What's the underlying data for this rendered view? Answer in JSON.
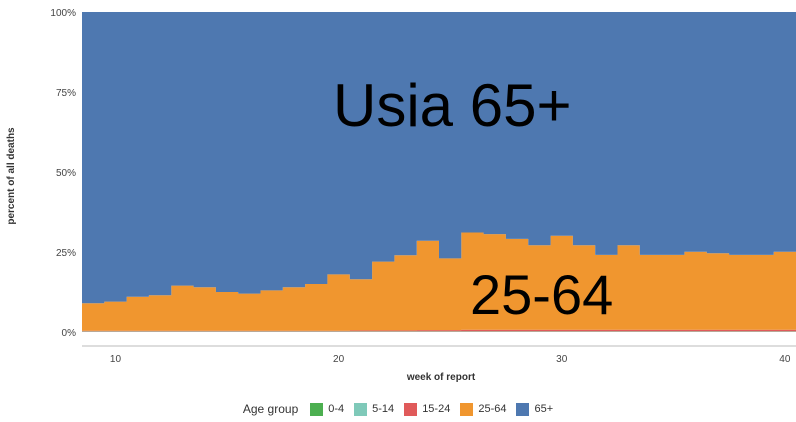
{
  "chart_data": {
    "type": "area",
    "stacked_percent": true,
    "xlabel": "week of report",
    "ylabel": "percent of all deaths",
    "xlim": [
      8.5,
      40.5
    ],
    "ylim": [
      0,
      100
    ],
    "x_ticks": [
      10,
      20,
      30,
      40
    ],
    "y_ticks": [
      0,
      25,
      50,
      75,
      100
    ],
    "y_tick_labels": [
      "0%",
      "25%",
      "50%",
      "75%",
      "100%"
    ],
    "step": true,
    "weeks": [
      9,
      10,
      11,
      12,
      13,
      14,
      15,
      16,
      17,
      18,
      19,
      20,
      21,
      22,
      23,
      24,
      25,
      26,
      27,
      28,
      29,
      30,
      31,
      32,
      33,
      34,
      35,
      36,
      37,
      38,
      39,
      40
    ],
    "series": [
      {
        "name": "0-4",
        "color": "#4caf50",
        "values": [
          0.1,
          0.1,
          0.1,
          0.1,
          0.1,
          0.1,
          0.1,
          0.1,
          0.1,
          0.1,
          0.1,
          0.1,
          0.1,
          0.1,
          0.1,
          0.1,
          0.1,
          0.1,
          0.1,
          0.1,
          0.1,
          0.1,
          0.1,
          0.1,
          0.1,
          0.1,
          0.1,
          0.1,
          0.1,
          0.1,
          0.1,
          0.1
        ]
      },
      {
        "name": "5-14",
        "color": "#7fc9b9",
        "values": [
          0.1,
          0.1,
          0.1,
          0.1,
          0.1,
          0.1,
          0.1,
          0.1,
          0.1,
          0.1,
          0.1,
          0.1,
          0.1,
          0.1,
          0.1,
          0.1,
          0.1,
          0.1,
          0.1,
          0.1,
          0.1,
          0.1,
          0.1,
          0.1,
          0.1,
          0.1,
          0.1,
          0.1,
          0.1,
          0.1,
          0.1,
          0.1
        ]
      },
      {
        "name": "15-24",
        "color": "#e05a5a",
        "values": [
          0.2,
          0.2,
          0.2,
          0.2,
          0.2,
          0.2,
          0.2,
          0.2,
          0.2,
          0.2,
          0.2,
          0.2,
          0.3,
          0.3,
          0.3,
          0.4,
          0.4,
          0.5,
          0.5,
          0.5,
          0.5,
          0.5,
          0.5,
          0.5,
          0.5,
          0.5,
          0.5,
          0.5,
          0.5,
          0.5,
          0.5,
          0.5
        ]
      },
      {
        "name": "25-64",
        "color": "#f0962f",
        "values": [
          8.6,
          9.1,
          10.6,
          11.1,
          14.1,
          13.6,
          12.1,
          11.6,
          12.6,
          13.6,
          14.6,
          17.6,
          16.0,
          21.5,
          23.5,
          27.9,
          22.4,
          30.4,
          29.9,
          28.4,
          26.4,
          29.4,
          26.4,
          23.4,
          26.4,
          23.4,
          23.4,
          24.4,
          23.9,
          23.4,
          23.4,
          24.4
        ]
      },
      {
        "name": "65+",
        "color": "#4e78b0",
        "values": [
          91.0,
          90.5,
          89.0,
          88.5,
          85.5,
          86.0,
          87.5,
          88.0,
          87.0,
          86.0,
          85.0,
          82.0,
          83.5,
          78.0,
          76.0,
          71.5,
          77.0,
          68.9,
          69.4,
          70.9,
          72.9,
          69.9,
          72.9,
          75.9,
          72.9,
          75.9,
          75.9,
          74.9,
          75.4,
          75.9,
          75.9,
          74.9
        ]
      }
    ],
    "annotations": [
      {
        "text": "Usia 65+",
        "series": "65+"
      },
      {
        "text": "25-64",
        "series": "25-64"
      }
    ],
    "legend": {
      "title": "Age group",
      "position": "bottom-center"
    }
  }
}
